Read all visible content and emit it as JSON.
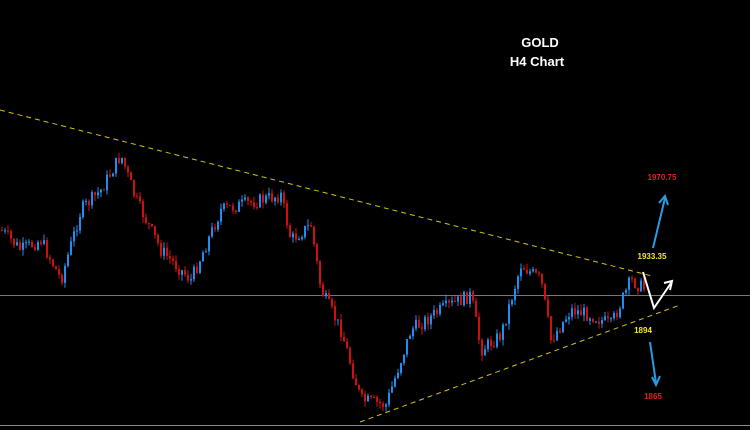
{
  "header": {
    "title": "GOLD",
    "subtitle": "H4 Chart"
  },
  "levels": {
    "target_up": "1970.75",
    "resistance": "1933.35",
    "support": "1894",
    "target_down": "1865"
  }
}
